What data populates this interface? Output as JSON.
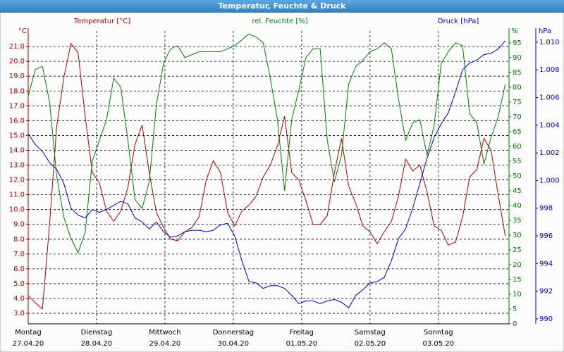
{
  "chart_data": {
    "type": "line",
    "title": "Temperatur, Feuchte & Druck",
    "x": [
      0,
      2.5,
      5,
      7.5,
      10,
      12.5,
      15,
      17.5,
      20,
      22.5,
      25,
      27.5,
      30,
      32.5,
      35,
      37.5,
      40,
      42.5,
      45,
      47.5,
      50,
      52.5,
      55,
      57.5,
      60,
      62.5,
      65,
      67.5,
      70,
      72.5,
      75,
      77.5,
      80,
      82.5,
      85,
      87.5,
      90,
      92.5,
      95,
      97.5,
      100,
      102.5,
      105,
      107.5,
      110,
      112.5,
      115,
      117.5,
      120,
      122.5,
      125,
      127.5,
      130,
      132.5,
      135,
      137.5,
      140,
      142.5,
      145,
      147.5,
      150,
      152.5,
      155,
      157.5,
      160,
      162.5,
      165,
      167.5
    ],
    "xlim": [
      0,
      168.8
    ],
    "xticks": [
      {
        "value": 0,
        "label": "Montag"
      },
      {
        "value": 24,
        "label": "Dienstag"
      },
      {
        "value": 48,
        "label": "Mittwoch"
      },
      {
        "value": 72,
        "label": "Donnerstag"
      },
      {
        "value": 96,
        "label": "Freitag"
      },
      {
        "value": 120,
        "label": "Samstag"
      },
      {
        "value": 144,
        "label": "Sonntag"
      }
    ],
    "xtick_dates": [
      "27.04.20",
      "28.04.20",
      "29.04.20",
      "30.04.20",
      "01.05.20",
      "02.05.20",
      "03.05.20"
    ],
    "ylim": [
      2.29,
      22.05
    ],
    "yticks": [
      {
        "value": 3,
        "label": "3.0"
      },
      {
        "value": 4,
        "label": "4.0"
      },
      {
        "value": 5,
        "label": "5.0"
      },
      {
        "value": 6,
        "label": "6.0"
      },
      {
        "value": 7,
        "label": "7.0"
      },
      {
        "value": 8,
        "label": "8.0"
      },
      {
        "value": 9,
        "label": "9.0"
      },
      {
        "value": 10,
        "label": "10.0"
      },
      {
        "value": 11,
        "label": "11.0"
      },
      {
        "value": 12,
        "label": "12.0"
      },
      {
        "value": 13,
        "label": "13.0"
      },
      {
        "value": 14,
        "label": "14.0"
      },
      {
        "value": 15,
        "label": "15.0"
      },
      {
        "value": 16,
        "label": "16.0"
      },
      {
        "value": 17,
        "label": "17.0"
      },
      {
        "value": 18,
        "label": "18.0"
      },
      {
        "value": 19,
        "label": "19.0"
      },
      {
        "value": 20,
        "label": "20.0"
      },
      {
        "value": 21,
        "label": "21.0"
      }
    ],
    "y_unit": "°C",
    "y2lim": [
      0,
      99
    ],
    "y2ticks": [
      0,
      5,
      10,
      15,
      20,
      25,
      30,
      35,
      40,
      45,
      50,
      55,
      60,
      65,
      70,
      75,
      80,
      85,
      90,
      95
    ],
    "y2_unit": "%",
    "y3lim": [
      989.64,
      1010.81
    ],
    "y3ticks": [
      990,
      992,
      994,
      996,
      998,
      {
        "value": 1000,
        "label": "1.000"
      },
      {
        "value": 1002,
        "label": "1.002"
      },
      {
        "value": 1004,
        "label": "1.004"
      },
      {
        "value": 1006,
        "label": "1.006"
      },
      {
        "value": 1008,
        "label": "1.008"
      },
      {
        "value": 1010,
        "label": "1.010"
      }
    ],
    "y3_unit": "hPa",
    "grid": true,
    "series": [
      {
        "name": "Temperatur [°C]",
        "color": "#b00000",
        "axis": "y",
        "values": [
          4.2,
          3.7,
          3.3,
          9.0,
          15.6,
          18.9,
          21.2,
          20.6,
          16.3,
          12.5,
          11.8,
          9.9,
          9.2,
          9.9,
          11.5,
          14.4,
          15.7,
          12.5,
          9.8,
          8.8,
          8.0,
          7.9,
          8.5,
          8.8,
          9.5,
          12.0,
          13.3,
          12.5,
          9.8,
          8.9,
          9.9,
          10.3,
          10.9,
          12.2,
          13.0,
          14.3,
          16.3,
          12.5,
          12.0,
          10.6,
          9.0,
          9.0,
          9.6,
          12.5,
          14.8,
          11.6,
          10.4,
          8.9,
          8.5,
          7.7,
          8.5,
          9.2,
          10.9,
          13.4,
          12.6,
          13.0,
          11.2,
          8.9,
          8.6,
          7.6,
          7.8,
          9.5,
          12.2,
          12.7,
          14.8,
          14.0,
          11.0,
          8.2
        ]
      },
      {
        "name": "rel. Feuchte [%]",
        "color": "#008000",
        "axis": "y2",
        "values": [
          77,
          86,
          87,
          75,
          50,
          36,
          29,
          24,
          31,
          55,
          62,
          69,
          83,
          80,
          62,
          42,
          39,
          48,
          74,
          88,
          93,
          94,
          90,
          91,
          92,
          92,
          92,
          92,
          93,
          94,
          96,
          98,
          97,
          95,
          83,
          69,
          45,
          69,
          79,
          90,
          93,
          93,
          62,
          48,
          57,
          81,
          87,
          89,
          92,
          93,
          95,
          93,
          76,
          62,
          68,
          69,
          57,
          67,
          88,
          92,
          95,
          94,
          71,
          68,
          54,
          63,
          70,
          81
        ]
      },
      {
        "name": "Druck [hPa]",
        "color": "#0000c0",
        "axis": "y3",
        "values": [
          1003.4,
          1002.6,
          1002.1,
          1001.3,
          1000.8,
          999.8,
          998.0,
          997.5,
          997.3,
          997.9,
          997.7,
          997.9,
          998.2,
          998.5,
          998.3,
          997.3,
          997.0,
          996.5,
          997.0,
          996.3,
          995.9,
          996.0,
          996.3,
          996.4,
          996.4,
          996.3,
          996.4,
          996.8,
          996.9,
          996.0,
          994.2,
          992.7,
          992.6,
          992.2,
          992.4,
          992.4,
          992.2,
          991.7,
          991.1,
          991.3,
          991.3,
          991.1,
          991.3,
          991.4,
          991.2,
          990.8,
          991.7,
          992.1,
          992.6,
          992.7,
          993.0,
          994.2,
          995.8,
          996.5,
          998.0,
          999.8,
          1001.6,
          1003.1,
          1004.1,
          1004.9,
          1006.4,
          1008.0,
          1008.5,
          1008.7,
          1009.1,
          1009.2,
          1009.5,
          1010.1
        ]
      }
    ]
  }
}
